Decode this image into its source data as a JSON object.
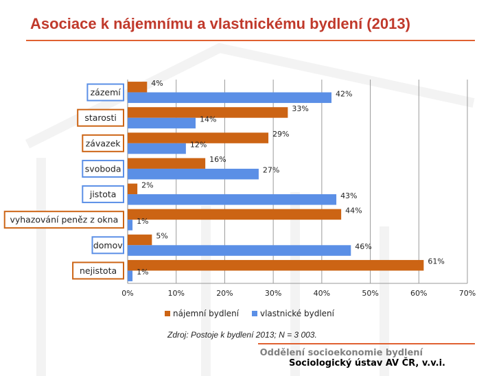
{
  "title": "Asociace k nájemnímu a vlastnickému bydlení (2013)",
  "source": "Zdroj: Postoje k bydlení 2013; N = 3 003.",
  "footer": {
    "line1": "Oddělení socioekonomie bydlení",
    "line2": "Sociologický ústav AV ČR, v.v.i."
  },
  "colors": {
    "rent": "#cc6414",
    "own": "#5b8fe6",
    "rent_box": "#cc6414",
    "own_box": "#5b8fe6",
    "title": "#c0392b"
  },
  "chart_data": {
    "type": "bar",
    "orientation": "horizontal",
    "categories": [
      "zázemí",
      "starosti",
      "závazek",
      "svoboda",
      "jistota",
      "vyhazování peněz z okna",
      "domov",
      "nejistota"
    ],
    "category_box_color": [
      "own",
      "rent",
      "rent",
      "own",
      "own",
      "rent",
      "own",
      "rent"
    ],
    "series": [
      {
        "name": "nájemní bydlení",
        "values": [
          4,
          33,
          29,
          16,
          2,
          44,
          5,
          61
        ]
      },
      {
        "name": "vlastnické bydlení",
        "values": [
          42,
          14,
          12,
          27,
          43,
          1,
          46,
          1
        ]
      }
    ],
    "value_suffix": "%",
    "xlim": [
      0,
      70
    ],
    "x_ticks": [
      "0%",
      "10%",
      "20%",
      "30%",
      "40%",
      "50%",
      "60%",
      "70%"
    ],
    "grid": true,
    "legend": "bottom"
  }
}
